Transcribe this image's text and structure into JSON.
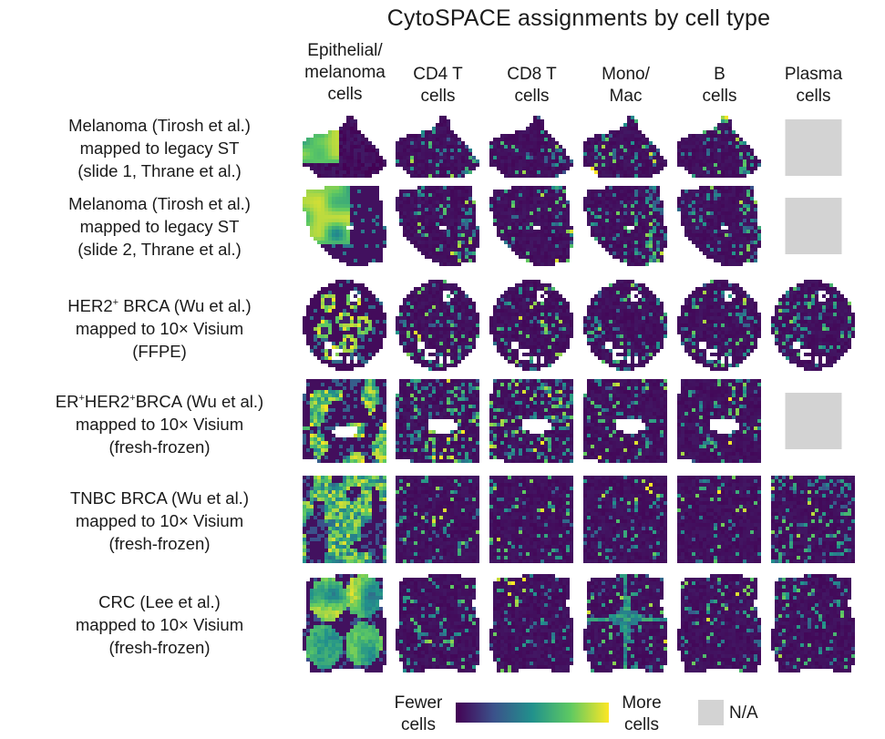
{
  "chart_data": {
    "type": "heatmap",
    "title": "CytoSPACE assignments by cell type",
    "columns": [
      "Epithelial/\nmelanoma\ncells",
      "CD4 T\ncells",
      "CD8 T\ncells",
      "Mono/\nMac",
      "B\ncells",
      "Plasma\ncells"
    ],
    "rows": [
      {
        "lines": [
          "Melanoma (Tirosh et al.)",
          "mapped to legacy ST",
          "(slide 1, Thrane et al.)"
        ],
        "tissue": "melanoma-1",
        "available": [
          true,
          true,
          true,
          true,
          true,
          false
        ]
      },
      {
        "lines": [
          "Melanoma (Tirosh et al.)",
          "mapped to legacy ST",
          "(slide 2, Thrane et al.)"
        ],
        "tissue": "melanoma-2",
        "available": [
          true,
          true,
          true,
          true,
          true,
          false
        ]
      },
      {
        "lines": [
          "HER2<sup>+</sup> BRCA (Wu et al.)",
          "mapped to 10× Visium",
          "(FFPE)"
        ],
        "tissue": "her2",
        "available": [
          true,
          true,
          true,
          true,
          true,
          true
        ]
      },
      {
        "lines": [
          "ER<sup>+</sup>HER2<sup>+</sup>BRCA (Wu et al.)",
          "mapped to 10× Visium",
          "(fresh-frozen)"
        ],
        "tissue": "er-her2",
        "available": [
          true,
          true,
          true,
          true,
          true,
          false
        ]
      },
      {
        "lines": [
          "TNBC BRCA (Wu et al.)",
          "mapped to 10× Visium",
          "(fresh-frozen)"
        ],
        "tissue": "tnbc",
        "available": [
          true,
          true,
          true,
          true,
          true,
          true
        ]
      },
      {
        "lines": [
          "CRC (Lee et al.)",
          "mapped to 10× Visium",
          "(fresh-frozen)"
        ],
        "tissue": "crc",
        "available": [
          true,
          true,
          true,
          true,
          true,
          true
        ]
      }
    ],
    "colorscale": [
      "#440154",
      "#3b528b",
      "#21918c",
      "#5ec962",
      "#fde725"
    ],
    "na_color": "#d3d3d3",
    "legend": {
      "low": "Fewer\ncells",
      "high": "More\ncells",
      "na": "N/A"
    }
  }
}
